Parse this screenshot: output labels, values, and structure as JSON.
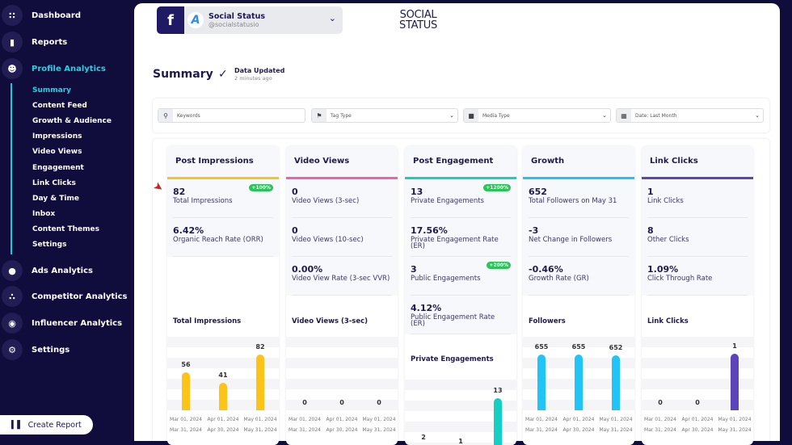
{
  "sidebar": {
    "items": [
      {
        "label": "Dashboard",
        "icon": "dashboard-icon"
      },
      {
        "label": "Reports",
        "icon": "reports-icon"
      },
      {
        "label": "Profile Analytics",
        "icon": "profile-icon",
        "active": true
      },
      {
        "label": "Ads Analytics",
        "icon": "ads-icon"
      },
      {
        "label": "Competitor Analytics",
        "icon": "competitor-icon"
      },
      {
        "label": "Influencer Analytics",
        "icon": "influencer-icon"
      },
      {
        "label": "Settings",
        "icon": "gear-icon"
      }
    ],
    "subitems": [
      "Summary",
      "Content Feed",
      "Growth & Audience",
      "Impressions",
      "Video Views",
      "Engagement",
      "Link Clicks",
      "Day & Time",
      "Inbox",
      "Content Themes",
      "Settings"
    ],
    "active_sub": "Summary",
    "create_report": "Create Report"
  },
  "account": {
    "network": "f",
    "name": "Social Status",
    "handle": "@socialstatusio",
    "avatar": "A"
  },
  "logo": {
    "line1": "SOCIAL",
    "line2": "STATUS"
  },
  "header": {
    "title": "Summary",
    "update_label": "Data Updated",
    "update_time": "2 minutes ago"
  },
  "filters": {
    "keywords_placeholder": "Keywords",
    "tag_type": "Tag Type",
    "media_type": "Media Type",
    "date": "Date: Last Month"
  },
  "date_ranges": [
    [
      "Mar 01, 2024",
      "Mar 31, 2024"
    ],
    [
      "Apr 01, 2024",
      "Apr 30, 2024"
    ],
    [
      "May 01, 2024",
      "May 31, 2024"
    ]
  ],
  "cards": [
    {
      "title": "Post Impressions",
      "color": "#fcc419",
      "metrics": [
        {
          "value": "82",
          "label": "Total Impressions",
          "badge": "+100%"
        },
        {
          "value": "6.42%",
          "label": "Organic Reach Rate (ORR)"
        }
      ],
      "chart": {
        "title": "Total Impressions",
        "values": [
          56,
          41,
          82
        ],
        "ymax": 100
      }
    },
    {
      "title": "Video Views",
      "color": "#f65fa8",
      "metrics": [
        {
          "value": "0",
          "label": "Video Views (3-sec)"
        },
        {
          "value": "0",
          "label": "Video Views (10-sec)"
        },
        {
          "value": "0.00%",
          "label": "Video View Rate (3-sec VVR)"
        }
      ],
      "chart": {
        "title": "Video Views (3-sec)",
        "values": [
          0,
          0,
          0
        ],
        "ymax": 100
      }
    },
    {
      "title": "Post Engagement",
      "color": "#16cfc4",
      "metrics": [
        {
          "value": "13",
          "label": "Private Engagements",
          "badge": "+1200%"
        },
        {
          "value": "17.56%",
          "label": "Private Engagement Rate (ER)"
        },
        {
          "value": "3",
          "label": "Public Engagements",
          "badge": "+200%"
        },
        {
          "value": "4.12%",
          "label": "Public Engagement Rate (ER)"
        }
      ],
      "chart": {
        "title": "Private Engagements",
        "values": [
          2,
          1,
          13
        ],
        "ymax": 16
      }
    },
    {
      "title": "Growth",
      "color": "#22c3f7",
      "metrics": [
        {
          "value": "652",
          "label": "Total Followers on May 31"
        },
        {
          "value": "-3",
          "label": "Net Change in Followers"
        },
        {
          "value": "-0.46%",
          "label": "Growth Rate (GR)"
        }
      ],
      "chart": {
        "title": "Followers",
        "values": [
          655,
          655,
          652
        ],
        "ymax": 800
      }
    },
    {
      "title": "Link Clicks",
      "color": "#5b45b8",
      "metrics": [
        {
          "value": "1",
          "label": "Link Clicks"
        },
        {
          "value": "8",
          "label": "Other Clicks"
        },
        {
          "value": "1.09%",
          "label": "Click Through Rate"
        }
      ],
      "chart": {
        "title": "Link Clicks",
        "values": [
          0,
          0,
          1
        ],
        "ymax": 1.2
      }
    }
  ]
}
